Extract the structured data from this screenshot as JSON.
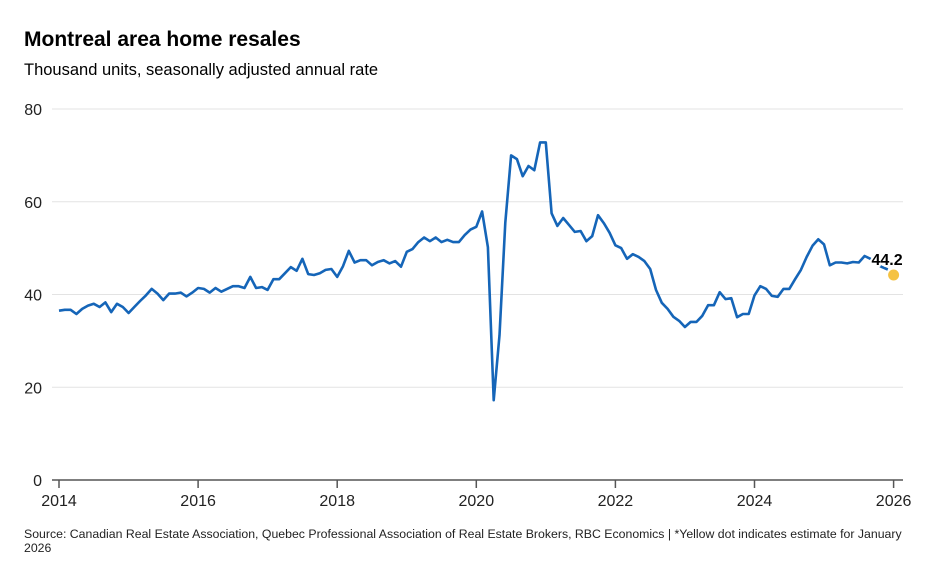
{
  "chart_data": {
    "type": "line",
    "title": "Montreal area home resales",
    "subtitle": "Thousand units, seasonally adjusted annual rate",
    "xlabel": "",
    "ylabel": "",
    "xlim": [
      2014,
      2026.17
    ],
    "ylim": [
      0,
      80
    ],
    "grid": true,
    "x_ticks": [
      "2014",
      "2016",
      "2018",
      "2020",
      "2022",
      "2024",
      "2026"
    ],
    "y_ticks": [
      "0",
      "20",
      "40",
      "60",
      "80"
    ],
    "series": [
      {
        "name": "Montreal area home resales",
        "color": "#1565b8",
        "start": "2014-01",
        "frequency": "monthly",
        "values": [
          36.5,
          36.7,
          36.7,
          35.8,
          36.9,
          37.6,
          38.0,
          37.3,
          38.3,
          36.2,
          38.0,
          37.3,
          36.0,
          37.3,
          38.6,
          39.8,
          41.2,
          40.2,
          38.8,
          40.2,
          40.2,
          40.4,
          39.6,
          40.4,
          41.4,
          41.2,
          40.4,
          41.4,
          40.6,
          41.2,
          41.8,
          41.8,
          41.4,
          43.8,
          41.4,
          41.6,
          41.0,
          43.3,
          43.3,
          44.6,
          45.9,
          45.1,
          47.7,
          44.4,
          44.2,
          44.6,
          45.3,
          45.5,
          43.8,
          46.1,
          49.4,
          46.9,
          47.4,
          47.4,
          46.3,
          47.0,
          47.4,
          46.7,
          47.2,
          46.0,
          49.2,
          49.8,
          51.3,
          52.3,
          51.5,
          52.3,
          51.3,
          51.8,
          51.3,
          51.3,
          52.8,
          54.0,
          54.6,
          57.9,
          50.2,
          17.2,
          31.2,
          55.5,
          70.0,
          69.2,
          65.5,
          67.7,
          66.8,
          72.8,
          72.8,
          57.5,
          54.8,
          56.5,
          55.0,
          53.5,
          53.7,
          51.5,
          52.6,
          57.1,
          55.4,
          53.3,
          50.6,
          50.0,
          47.7,
          48.7,
          48.1,
          47.2,
          45.5,
          41.0,
          38.2,
          36.9,
          35.2,
          34.3,
          33.0,
          34.1,
          34.1,
          35.4,
          37.7,
          37.7,
          40.5,
          39.0,
          39.2,
          35.1,
          35.8,
          35.8,
          39.8,
          41.8,
          41.2,
          39.7,
          39.5,
          41.2,
          41.2,
          43.3,
          45.3,
          48.1,
          50.5,
          51.9,
          50.8,
          46.3,
          46.9,
          46.9,
          46.7,
          47.0,
          46.9,
          48.3,
          47.7,
          46.6,
          45.9,
          45.4
        ]
      }
    ],
    "estimate": {
      "label": "44.2",
      "date": "2026-01",
      "value": 44.2,
      "color": "#f5c242"
    },
    "source_note": "Source: Canadian Real Estate Association, Quebec Professional Association of Real Estate Brokers, RBC Economics | *Yellow dot indicates estimate for January 2026"
  }
}
